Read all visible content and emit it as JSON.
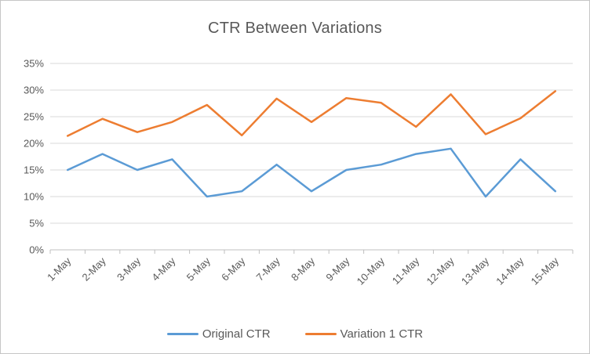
{
  "style": {
    "background": "#FFFFFF",
    "border_color": "#C6C6C6",
    "text_color": "#595959",
    "gridline_color": "#D9D9D9",
    "axis_color": "#BFBFBF"
  },
  "chart_data": {
    "type": "line",
    "title": "CTR Between Variations",
    "categories": [
      "1-May",
      "2-May",
      "3-May",
      "4-May",
      "5-May",
      "6-May",
      "7-May",
      "8-May",
      "9-May",
      "10-May",
      "11-May",
      "12-May",
      "13-May",
      "14-May",
      "15-May"
    ],
    "series": [
      {
        "name": "Original CTR",
        "color": "#5B9BD5",
        "values": [
          15,
          18,
          15,
          17,
          10,
          11,
          16,
          11,
          15,
          16,
          18,
          19,
          10,
          17,
          11
        ]
      },
      {
        "name": "Variation 1 CTR",
        "color": "#ED7D31",
        "values": [
          21.4,
          24.6,
          22.1,
          24.0,
          27.2,
          21.5,
          28.4,
          24.0,
          28.5,
          27.6,
          23.1,
          29.2,
          21.7,
          24.7,
          29.8
        ]
      }
    ],
    "value_unit": "%",
    "ylim": [
      0,
      35
    ],
    "ytick_step": 5,
    "ytick_labels": [
      "0%",
      "5%",
      "10%",
      "15%",
      "20%",
      "25%",
      "30%",
      "35%"
    ],
    "xlabel": "",
    "ylabel": "",
    "grid": true,
    "x_label_rotation_deg": 45,
    "legend_position": "bottom"
  }
}
